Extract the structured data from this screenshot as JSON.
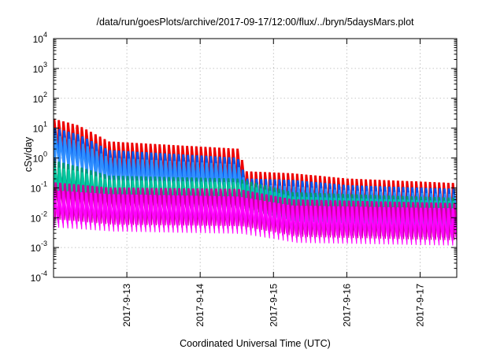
{
  "chart_data": {
    "type": "line",
    "title": "/data/run/goesPlots/archive/2017-09-17/12:00/flux/../bryn/5daysMars.plot",
    "xlabel": "Coordinated Universal Time (UTC)",
    "ylabel": "cSv/day",
    "yscale": "log",
    "ylim": [
      0.0001,
      10000
    ],
    "xlim": [
      "2017-09-12 00:00",
      "2017-09-17 12:00"
    ],
    "grid": true,
    "x_ticks": [
      {
        "label": "2017-9-13",
        "value": "2017-09-13 00:00"
      },
      {
        "label": "2017-9-14",
        "value": "2017-09-14 00:00"
      },
      {
        "label": "2017-9-15",
        "value": "2017-09-15 00:00"
      },
      {
        "label": "2017-9-16",
        "value": "2017-09-16 00:00"
      },
      {
        "label": "2017-9-17",
        "value": "2017-09-17 00:00"
      }
    ],
    "y_ticks": [
      {
        "base": "10",
        "exp": "-4",
        "value": 0.0001
      },
      {
        "base": "10",
        "exp": "-3",
        "value": 0.001
      },
      {
        "base": "10",
        "exp": "-2",
        "value": 0.01
      },
      {
        "base": "10",
        "exp": "-1",
        "value": 0.1
      },
      {
        "base": "10",
        "exp": "0",
        "value": 1
      },
      {
        "base": "10",
        "exp": "1",
        "value": 10
      },
      {
        "base": "10",
        "exp": "2",
        "value": 100
      },
      {
        "base": "10",
        "exp": "3",
        "value": 1000
      },
      {
        "base": "10",
        "exp": "4",
        "value": 10000
      }
    ],
    "oscillation": {
      "cycles_per_day": 16,
      "decay_dex_per_cycle": 0.9
    },
    "series": [
      {
        "color": "#ee0000",
        "peaks": [
          [
            "2017-09-12 00:00",
            20
          ],
          [
            "2017-09-12 08:00",
            12
          ],
          [
            "2017-09-12 18:00",
            3.5
          ],
          [
            "2017-09-14 12:00",
            2.0
          ],
          [
            "2017-09-14 15:00",
            0.35
          ],
          [
            "2017-09-15 06:00",
            0.3
          ],
          [
            "2017-09-16 00:00",
            0.2
          ],
          [
            "2017-09-17 12:00",
            0.14
          ]
        ]
      },
      {
        "color": "#0055ee",
        "peaks": [
          [
            "2017-09-12 00:00",
            10
          ],
          [
            "2017-09-12 08:00",
            6
          ],
          [
            "2017-09-12 18:00",
            1.8
          ],
          [
            "2017-09-14 12:00",
            1.0
          ],
          [
            "2017-09-14 15:00",
            0.2
          ],
          [
            "2017-09-15 06:00",
            0.18
          ],
          [
            "2017-09-16 00:00",
            0.12
          ],
          [
            "2017-09-17 12:00",
            0.09
          ]
        ]
      },
      {
        "color": "#2f8fff",
        "peaks": [
          [
            "2017-09-12 00:00",
            6
          ],
          [
            "2017-09-12 08:00",
            3.5
          ],
          [
            "2017-09-12 18:00",
            1.0
          ],
          [
            "2017-09-14 12:00",
            0.6
          ],
          [
            "2017-09-14 15:00",
            0.13
          ],
          [
            "2017-09-15 06:00",
            0.11
          ],
          [
            "2017-09-16 00:00",
            0.08
          ],
          [
            "2017-09-17 12:00",
            0.06
          ]
        ]
      },
      {
        "color": "#009977",
        "peaks": [
          [
            "2017-09-12 00:00",
            0.8
          ],
          [
            "2017-09-12 08:00",
            0.5
          ],
          [
            "2017-09-12 18:00",
            0.25
          ],
          [
            "2017-09-14 12:00",
            0.2
          ],
          [
            "2017-09-15 06:00",
            0.07
          ],
          [
            "2017-09-17 12:00",
            0.045
          ]
        ]
      },
      {
        "color": "#00c8a0",
        "peaks": [
          [
            "2017-09-12 00:00",
            0.5
          ],
          [
            "2017-09-12 08:00",
            0.35
          ],
          [
            "2017-09-12 18:00",
            0.18
          ],
          [
            "2017-09-14 12:00",
            0.15
          ],
          [
            "2017-09-15 06:00",
            0.05
          ],
          [
            "2017-09-17 12:00",
            0.035
          ]
        ]
      },
      {
        "color": "#cc0099",
        "peaks": [
          [
            "2017-09-12 00:00",
            0.15
          ],
          [
            "2017-09-12 18:00",
            0.1
          ],
          [
            "2017-09-14 12:00",
            0.09
          ],
          [
            "2017-09-15 06:00",
            0.04
          ],
          [
            "2017-09-17 12:00",
            0.03
          ]
        ]
      },
      {
        "color": "#ff00ff",
        "peaks": [
          [
            "2017-09-12 00:00",
            0.08
          ],
          [
            "2017-09-12 18:00",
            0.06
          ],
          [
            "2017-09-14 12:00",
            0.05
          ],
          [
            "2017-09-15 06:00",
            0.025
          ],
          [
            "2017-09-17 12:00",
            0.02
          ]
        ]
      }
    ]
  }
}
